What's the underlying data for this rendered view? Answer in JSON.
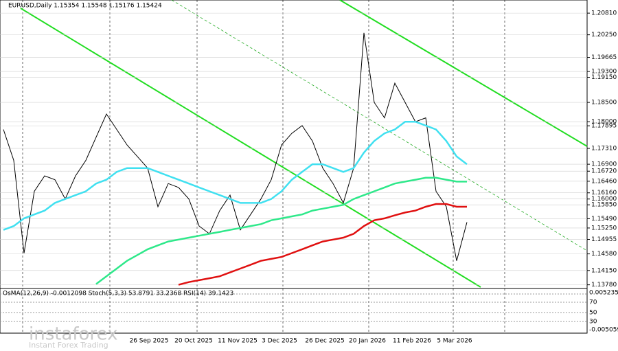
{
  "chart_data": {
    "type": "line",
    "title": "EURUSD,Daily 1.15354 1.15548 1.15176 1.15424",
    "series": [
      {
        "name": "Close",
        "color": "#000000",
        "values": [
          1.178,
          1.17,
          1.146,
          1.162,
          1.166,
          1.165,
          1.16,
          1.166,
          1.17,
          1.176,
          1.182,
          1.178,
          1.174,
          1.171,
          1.168,
          1.158,
          1.164,
          1.163,
          1.16,
          1.153,
          1.151,
          1.157,
          1.161,
          1.152,
          1.156,
          1.16,
          1.165,
          1.174,
          1.177,
          1.179,
          1.175,
          1.168,
          1.164,
          1.159,
          1.168,
          1.203,
          1.185,
          1.181,
          1.19,
          1.185,
          1.18,
          1.181,
          1.162,
          1.158,
          1.144,
          1.154
        ]
      },
      {
        "name": "MA fast",
        "color": "#40e0f0",
        "values": [
          1.152,
          1.153,
          1.155,
          1.156,
          1.157,
          1.159,
          1.16,
          1.161,
          1.162,
          1.164,
          1.165,
          1.167,
          1.168,
          1.168,
          1.168,
          1.167,
          1.166,
          1.165,
          1.164,
          1.163,
          1.162,
          1.161,
          1.16,
          1.159,
          1.159,
          1.159,
          1.16,
          1.162,
          1.165,
          1.167,
          1.169,
          1.169,
          1.168,
          1.167,
          1.168,
          1.172,
          1.175,
          1.177,
          1.178,
          1.18,
          1.18,
          1.179,
          1.178,
          1.175,
          1.171,
          1.169
        ]
      },
      {
        "name": "MA medium",
        "color": "#2ee88a",
        "values": [
          null,
          null,
          null,
          null,
          null,
          null,
          null,
          null,
          null,
          1.138,
          1.14,
          1.142,
          1.144,
          1.1455,
          1.147,
          1.148,
          1.149,
          1.1495,
          1.15,
          1.1505,
          1.151,
          1.1515,
          1.152,
          1.1525,
          1.153,
          1.1535,
          1.1545,
          1.155,
          1.1555,
          1.156,
          1.157,
          1.1575,
          1.158,
          1.1585,
          1.16,
          1.161,
          1.162,
          1.163,
          1.164,
          1.1645,
          1.165,
          1.1655,
          1.1655,
          1.165,
          1.1645,
          1.1645
        ]
      },
      {
        "name": "MA slow",
        "color": "#e01010",
        "values": [
          null,
          null,
          null,
          null,
          null,
          null,
          null,
          null,
          null,
          null,
          null,
          null,
          null,
          null,
          null,
          null,
          null,
          1.1378,
          1.1385,
          1.139,
          1.1395,
          1.14,
          1.141,
          1.142,
          1.143,
          1.144,
          1.1445,
          1.145,
          1.146,
          1.147,
          1.148,
          1.149,
          1.1495,
          1.15,
          1.151,
          1.153,
          1.1545,
          1.155,
          1.1558,
          1.1565,
          1.157,
          1.158,
          1.1587,
          1.1587,
          1.158,
          1.158
        ]
      }
    ],
    "ylim": [
      1.1372,
      1.2115
    ],
    "yticks": [
      {
        "value": 1.2081,
        "label": "1.20810"
      },
      {
        "value": 1.2025,
        "label": "1.20250"
      },
      {
        "value": 1.19665,
        "label": "1.19665"
      },
      {
        "value": 1.193,
        "label": "1.19300"
      },
      {
        "value": 1.1915,
        "label": "1.19150"
      },
      {
        "value": 1.185,
        "label": "1.18500"
      },
      {
        "value": 1.18,
        "label": "1.18000"
      },
      {
        "value": 1.17895,
        "label": "1.17895"
      },
      {
        "value": 1.1731,
        "label": "1.17310"
      },
      {
        "value": 1.169,
        "label": "1.16900"
      },
      {
        "value": 1.1672,
        "label": "1.16720"
      },
      {
        "value": 1.1646,
        "label": "1.16460"
      },
      {
        "value": 1.1616,
        "label": "1.16160"
      },
      {
        "value": 1.16,
        "label": "1.16000"
      },
      {
        "value": 1.1585,
        "label": "1.15850"
      },
      {
        "value": 1.1549,
        "label": "1.15490"
      },
      {
        "value": 1.1525,
        "label": "1.15250"
      },
      {
        "value": 1.14955,
        "label": "1.14955"
      },
      {
        "value": 1.1458,
        "label": "1.14580"
      },
      {
        "value": 1.1415,
        "label": "1.14150"
      },
      {
        "value": 1.1378,
        "label": "1.13780"
      }
    ],
    "grid": true,
    "date_labels": [
      "26 Sep 2025",
      "20 Oct 2025",
      "11 Nov 2025",
      "3 Dec 2025",
      "26 Dec 2025",
      "20 Jan 2026",
      "11 Feb 2026",
      "5 Mar 2026"
    ],
    "indicator_text": "OsMA(12,26,9) -0.0012098  Stoch(5,3,3) 53.8791 33.2368  RSI(14) 39.1423",
    "indicator_ticks": [
      "0.005235",
      "70",
      "50",
      "30",
      "-0.005059"
    ],
    "watermark": "instaforex",
    "watermark_sub": "Instant Forex Trading"
  }
}
